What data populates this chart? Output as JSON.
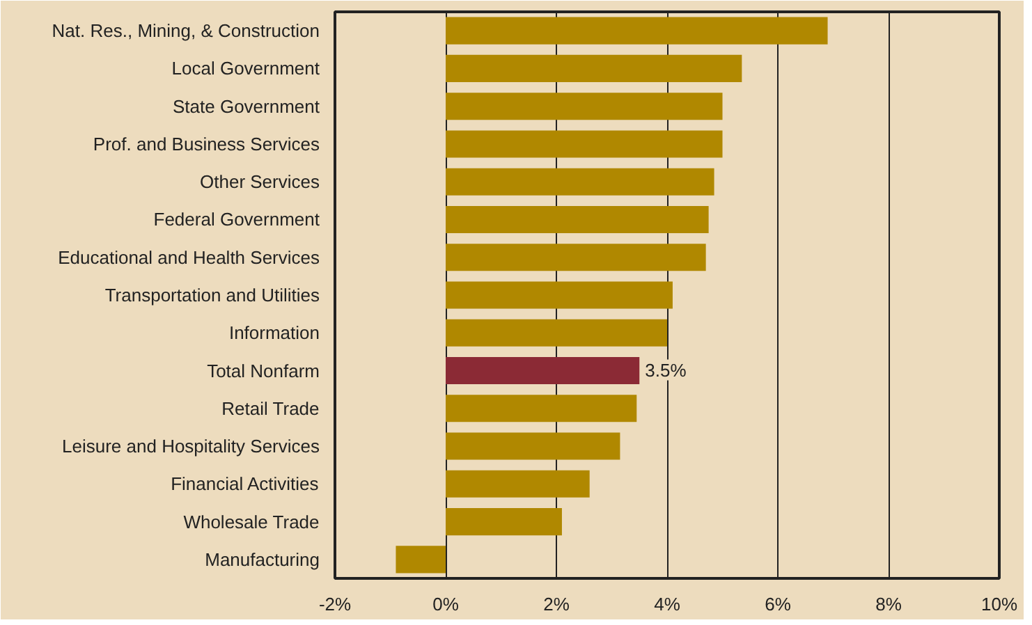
{
  "chart_data": {
    "type": "bar",
    "orientation": "horizontal",
    "categories": [
      "Nat. Res., Mining, & Construction",
      "Local Government",
      "State Government",
      "Prof. and Business Services",
      "Other Services",
      "Federal Government",
      "Educational and Health Services",
      "Transportation and Utilities",
      "Information",
      "Total Nonfarm",
      "Retail Trade",
      "Leisure and Hospitality Services",
      "Financial Activities",
      "Wholesale Trade",
      "Manufacturing"
    ],
    "values": [
      6.9,
      5.35,
      5.0,
      5.0,
      4.85,
      4.75,
      4.7,
      4.1,
      4.0,
      3.5,
      3.45,
      3.15,
      2.6,
      2.1,
      -0.9
    ],
    "colors": [
      "#b08800",
      "#b08800",
      "#b08800",
      "#b08800",
      "#b08800",
      "#b08800",
      "#b08800",
      "#b08800",
      "#b08800",
      "#8b2a35",
      "#b08800",
      "#b08800",
      "#b08800",
      "#b08800",
      "#b08800"
    ],
    "value_labels": [
      null,
      null,
      null,
      null,
      null,
      null,
      null,
      null,
      null,
      "3.5%",
      null,
      null,
      null,
      null,
      null
    ],
    "xlim": [
      -2,
      10
    ],
    "xticks": [
      {
        "value": -2,
        "label": "-2%"
      },
      {
        "value": 0,
        "label": "0%"
      },
      {
        "value": 2,
        "label": "2%"
      },
      {
        "value": 4,
        "label": "4%"
      },
      {
        "value": 6,
        "label": "6%"
      },
      {
        "value": 8,
        "label": "8%"
      },
      {
        "value": 10,
        "label": "10%"
      }
    ],
    "grid": "x"
  }
}
